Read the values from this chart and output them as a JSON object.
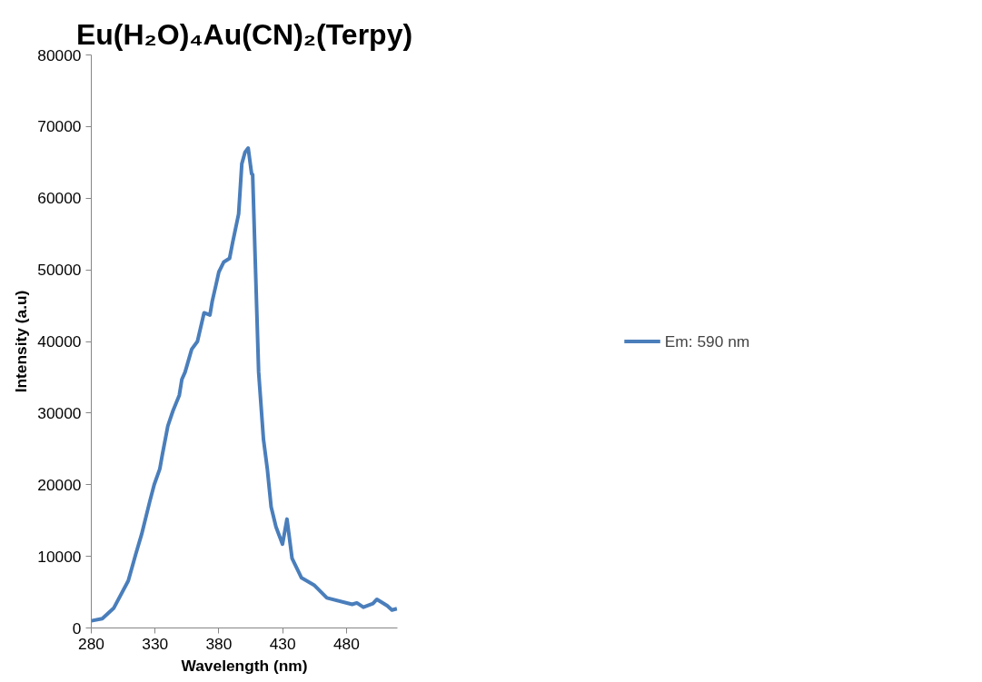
{
  "chart_data": {
    "type": "line",
    "title": "Eu(H₂O)₄Au(CN)₂(Terpy)",
    "xlabel": "Wavelength (nm)",
    "ylabel": "Intensity (a.u)",
    "xlim": [
      280,
      520
    ],
    "xticks": [
      280,
      330,
      380,
      430,
      480
    ],
    "ylim": [
      0,
      80000
    ],
    "yticks": [
      0,
      10000,
      20000,
      30000,
      40000,
      50000,
      60000,
      70000,
      80000
    ],
    "grid": false,
    "legend": "right",
    "marker": "none",
    "line_style": "solid",
    "series": [
      {
        "name": "Em: 590 nm",
        "color": "#4a7ebb",
        "x": [
          280,
          288.6,
          297.7,
          309,
          315,
          319.5,
          325.9,
          329.3,
          333.7,
          335.6,
          340,
          344,
          349,
          351,
          353.5,
          358.7,
          363.2,
          368.4,
          373,
          374.8,
          378,
          380,
          383.9,
          388.4,
          390.8,
          395.5,
          398,
          400.5,
          403,
          405.7,
          406.5,
          408.7,
          411.2,
          415,
          418,
          421,
          424.8,
          429.9,
          433.4,
          437.4,
          444.8,
          454.6,
          464.7,
          484.5,
          488.2,
          493.3,
          500.8,
          503.9,
          512,
          515.7,
          519.6
        ],
        "values": [
          1000,
          1300,
          2800,
          6600,
          10400,
          13100,
          17700,
          20000,
          22200,
          24100,
          28200,
          30300,
          32500,
          34700,
          35700,
          38900,
          40000,
          44000,
          43700,
          45600,
          48100,
          49700,
          51100,
          51600,
          53800,
          57800,
          64800,
          66400,
          67000,
          63400,
          63300,
          50300,
          35700,
          26300,
          22200,
          16900,
          14100,
          11700,
          15200,
          9700,
          7000,
          6000,
          4200,
          3300,
          3500,
          2900,
          3400,
          4000,
          3100,
          2500,
          2700
        ]
      }
    ]
  }
}
